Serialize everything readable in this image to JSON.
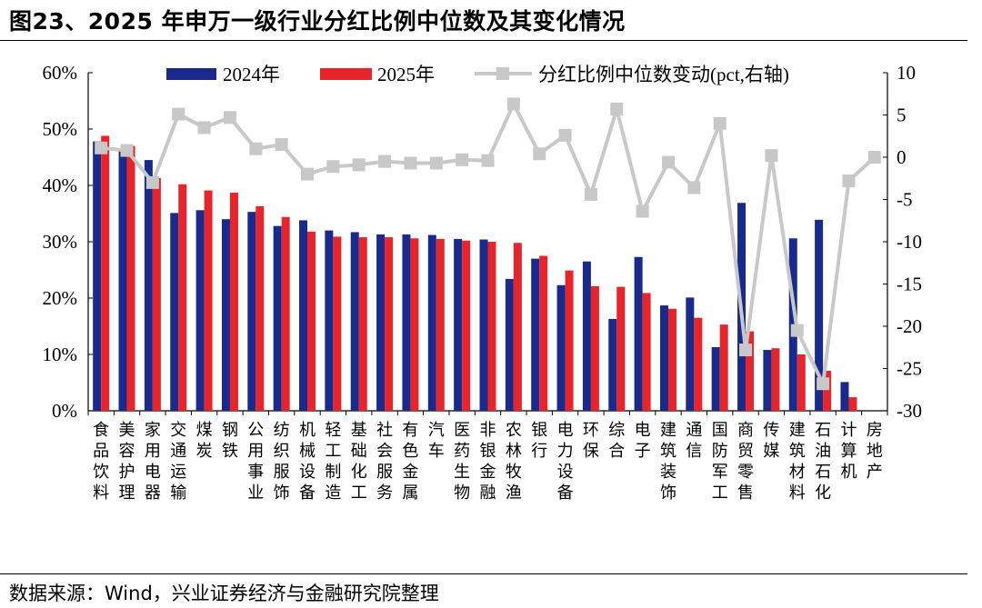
{
  "figure": {
    "title": "图23、2025 年申万一级行业分红比例中位数及其变化情况",
    "source": "数据来源：Wind，兴业证券经济与金融研究院整理"
  },
  "colors": {
    "series_2024": "#1a2a8c",
    "series_2025": "#e8242b",
    "series_change": "#c8c8c8"
  },
  "chart_data": {
    "type": "bar",
    "title": "",
    "xlabel": "",
    "ylabel": "",
    "categories": [
      "食品饮料",
      "美容护理",
      "家用电器",
      "交通运输",
      "煤炭",
      "钢铁",
      "公用事业",
      "纺织服饰",
      "机械设备",
      "轻工制造",
      "基础化工",
      "社会服务",
      "有色金属",
      "汽车",
      "医药生物",
      "非银金融",
      "农林牧渔",
      "银行",
      "电力设备",
      "环保",
      "综合",
      "电子",
      "建筑装饰",
      "通信",
      "国防军工",
      "商贸零售",
      "传媒",
      "建筑材料",
      "石油石化",
      "计算机",
      "房地产"
    ],
    "series": [
      {
        "name": "2024年",
        "type": "bar",
        "axis": "left",
        "values": [
          47.8,
          46.3,
          44.5,
          35.1,
          35.6,
          34.0,
          35.3,
          32.8,
          33.8,
          32.0,
          31.7,
          31.3,
          31.3,
          31.2,
          30.5,
          30.4,
          23.4,
          27.0,
          22.3,
          26.5,
          16.3,
          27.3,
          18.7,
          20.1,
          11.3,
          36.9,
          10.8,
          30.6,
          33.9,
          5.1,
          0
        ]
      },
      {
        "name": "2025年",
        "type": "bar",
        "axis": "left",
        "values": [
          48.8,
          47.0,
          41.3,
          40.2,
          39.1,
          38.7,
          36.3,
          34.4,
          31.8,
          30.9,
          30.8,
          30.8,
          30.6,
          30.5,
          30.2,
          30.0,
          29.8,
          27.5,
          24.9,
          22.1,
          22.0,
          20.9,
          18.1,
          16.5,
          15.3,
          14.1,
          11.1,
          10.0,
          7.1,
          2.4,
          0
        ]
      },
      {
        "name": "分红比例中位数变动(pct,右轴)",
        "type": "line",
        "axis": "right",
        "values": [
          1.1,
          0.8,
          -3.0,
          5.1,
          3.5,
          4.7,
          1.0,
          1.5,
          -2.0,
          -1.1,
          -0.9,
          -0.5,
          -0.7,
          -0.7,
          -0.3,
          -0.4,
          6.3,
          0.4,
          2.6,
          -4.4,
          5.7,
          -6.4,
          -0.6,
          -3.6,
          4.0,
          -22.8,
          0.2,
          -20.5,
          -26.8,
          -2.8,
          0.0
        ]
      }
    ],
    "y_left": {
      "min": 0,
      "max": 60,
      "ticks": [
        "0%",
        "10%",
        "20%",
        "30%",
        "40%",
        "50%",
        "60%"
      ]
    },
    "y_right": {
      "min": -30,
      "max": 10,
      "ticks": [
        "-30",
        "-25",
        "-20",
        "-15",
        "-10",
        "-5",
        "0",
        "5",
        "10"
      ]
    },
    "grid": false,
    "legend": "top"
  }
}
